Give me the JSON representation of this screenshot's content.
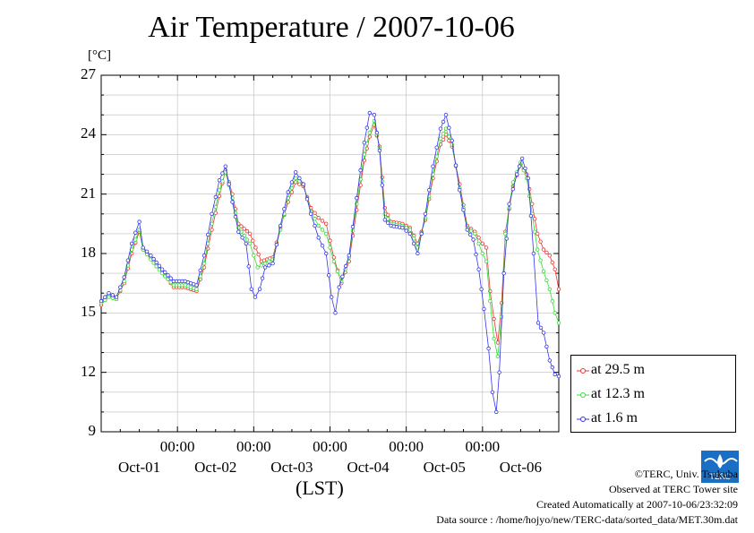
{
  "title": "Air Temperature / 2007-10-06",
  "unit": "[°C]",
  "xlabel": "(LST)",
  "time_label": "00:00",
  "legend": {
    "items": [
      {
        "label": "at 29.5 m",
        "color": "#ee3333"
      },
      {
        "label": "at 12.3 m",
        "color": "#33dd33"
      },
      {
        "label": "at 1.6 m",
        "color": "#3333ee"
      }
    ]
  },
  "credits": {
    "copyright": "©TERC, Univ. Tsukuba",
    "observed": "Observed at TERC Tower site",
    "created": "Created Automatically at 2007-10-06/23:32:09",
    "source": "Data source : /home/hojyo/new/TERC-data/sorted_data/MET.30m.dat"
  },
  "logo_text": "TERC",
  "chart_data": {
    "type": "line",
    "title": "Air Temperature / 2007-10-06",
    "ylabel": "[°C]",
    "xlabel": "(LST)",
    "ylim": [
      9,
      27
    ],
    "yticks": [
      9,
      12,
      15,
      18,
      21,
      24,
      27
    ],
    "xlim_days": [
      0,
      6
    ],
    "date_labels": [
      "Oct-01",
      "Oct-02",
      "Oct-03",
      "Oct-04",
      "Oct-05",
      "Oct-06"
    ],
    "grid": true,
    "legend_position": "bottom-right outside",
    "series": [
      {
        "name": "at 29.5 m",
        "color": "#ee3333",
        "points": [
          [
            0,
            15.4
          ],
          [
            0.1,
            15.9
          ],
          [
            0.2,
            15.7
          ],
          [
            0.3,
            16.5
          ],
          [
            0.4,
            18.0
          ],
          [
            0.5,
            19.1
          ],
          [
            0.55,
            18.2
          ],
          [
            0.65,
            17.8
          ],
          [
            0.8,
            17.1
          ],
          [
            0.95,
            16.3
          ],
          [
            1.1,
            16.3
          ],
          [
            1.25,
            16.1
          ],
          [
            1.35,
            17.3
          ],
          [
            1.45,
            19.2
          ],
          [
            1.55,
            20.9
          ],
          [
            1.63,
            22.2
          ],
          [
            1.72,
            21.0
          ],
          [
            1.8,
            19.5
          ],
          [
            1.95,
            19.0
          ],
          [
            2.1,
            17.6
          ],
          [
            2.25,
            17.8
          ],
          [
            2.35,
            19.3
          ],
          [
            2.45,
            20.6
          ],
          [
            2.55,
            21.6
          ],
          [
            2.65,
            21.4
          ],
          [
            2.75,
            20.3
          ],
          [
            2.85,
            19.8
          ],
          [
            2.95,
            19.5
          ],
          [
            3.05,
            17.8
          ],
          [
            3.15,
            16.5
          ],
          [
            3.25,
            17.6
          ],
          [
            3.35,
            20.2
          ],
          [
            3.45,
            22.7
          ],
          [
            3.52,
            23.9
          ],
          [
            3.58,
            24.5
          ],
          [
            3.65,
            23.4
          ],
          [
            3.72,
            20.3
          ],
          [
            3.8,
            19.6
          ],
          [
            3.95,
            19.5
          ],
          [
            4.05,
            19.3
          ],
          [
            4.15,
            18.5
          ],
          [
            4.25,
            19.7
          ],
          [
            4.35,
            21.8
          ],
          [
            4.45,
            23.5
          ],
          [
            4.52,
            24.0
          ],
          [
            4.6,
            23.4
          ],
          [
            4.7,
            21.5
          ],
          [
            4.8,
            19.4
          ],
          [
            4.9,
            19.1
          ],
          [
            5.0,
            18.5
          ],
          [
            5.05,
            18.3
          ],
          [
            5.1,
            16.1
          ],
          [
            5.15,
            14.7
          ],
          [
            5.2,
            13.5
          ],
          [
            5.25,
            15.5
          ],
          [
            5.3,
            19.1
          ],
          [
            5.4,
            21.4
          ],
          [
            5.5,
            22.5
          ],
          [
            5.58,
            22.0
          ],
          [
            5.65,
            20.5
          ],
          [
            5.72,
            19.0
          ],
          [
            5.8,
            18.2
          ],
          [
            5.88,
            17.9
          ],
          [
            5.95,
            17.2
          ],
          [
            6.0,
            16.2
          ]
        ]
      },
      {
        "name": "at 12.3 m",
        "color": "#33dd33",
        "points": [
          [
            0,
            15.5
          ],
          [
            0.1,
            15.8
          ],
          [
            0.2,
            15.7
          ],
          [
            0.3,
            16.6
          ],
          [
            0.4,
            18.2
          ],
          [
            0.5,
            19.2
          ],
          [
            0.55,
            18.2
          ],
          [
            0.65,
            17.7
          ],
          [
            0.8,
            17.0
          ],
          [
            0.95,
            16.4
          ],
          [
            1.1,
            16.4
          ],
          [
            1.25,
            16.2
          ],
          [
            1.35,
            17.5
          ],
          [
            1.45,
            19.5
          ],
          [
            1.55,
            21.2
          ],
          [
            1.63,
            22.1
          ],
          [
            1.72,
            20.8
          ],
          [
            1.8,
            19.3
          ],
          [
            1.95,
            18.5
          ],
          [
            2.05,
            17.3
          ],
          [
            2.15,
            17.5
          ],
          [
            2.25,
            17.7
          ],
          [
            2.35,
            19.2
          ],
          [
            2.45,
            20.8
          ],
          [
            2.55,
            21.8
          ],
          [
            2.65,
            21.5
          ],
          [
            2.75,
            20.1
          ],
          [
            2.85,
            19.4
          ],
          [
            2.95,
            19.0
          ],
          [
            3.05,
            17.6
          ],
          [
            3.15,
            16.6
          ],
          [
            3.25,
            17.8
          ],
          [
            3.35,
            20.5
          ],
          [
            3.45,
            23.0
          ],
          [
            3.52,
            24.1
          ],
          [
            3.58,
            24.7
          ],
          [
            3.65,
            23.3
          ],
          [
            3.72,
            20.0
          ],
          [
            3.8,
            19.5
          ],
          [
            3.95,
            19.4
          ],
          [
            4.05,
            19.2
          ],
          [
            4.15,
            18.3
          ],
          [
            4.25,
            19.8
          ],
          [
            4.35,
            22.0
          ],
          [
            4.45,
            23.8
          ],
          [
            4.52,
            24.3
          ],
          [
            4.6,
            23.5
          ],
          [
            4.7,
            21.3
          ],
          [
            4.8,
            19.3
          ],
          [
            4.9,
            19.0
          ],
          [
            5.0,
            18.0
          ],
          [
            5.05,
            17.6
          ],
          [
            5.1,
            15.6
          ],
          [
            5.15,
            13.7
          ],
          [
            5.2,
            12.8
          ],
          [
            5.25,
            14.8
          ],
          [
            5.3,
            19.0
          ],
          [
            5.4,
            21.6
          ],
          [
            5.5,
            22.6
          ],
          [
            5.58,
            21.8
          ],
          [
            5.65,
            20.0
          ],
          [
            5.72,
            18.2
          ],
          [
            5.8,
            17.1
          ],
          [
            5.88,
            16.2
          ],
          [
            5.95,
            15.0
          ],
          [
            6.0,
            14.5
          ]
        ]
      },
      {
        "name": "at 1.6 m",
        "color": "#3333ee",
        "points": [
          [
            0,
            15.6
          ],
          [
            0.1,
            16.0
          ],
          [
            0.2,
            15.8
          ],
          [
            0.3,
            16.8
          ],
          [
            0.4,
            18.5
          ],
          [
            0.5,
            19.6
          ],
          [
            0.55,
            18.3
          ],
          [
            0.65,
            17.9
          ],
          [
            0.8,
            17.2
          ],
          [
            0.95,
            16.6
          ],
          [
            1.1,
            16.6
          ],
          [
            1.25,
            16.4
          ],
          [
            1.35,
            17.9
          ],
          [
            1.45,
            20.0
          ],
          [
            1.55,
            21.7
          ],
          [
            1.63,
            22.4
          ],
          [
            1.72,
            20.6
          ],
          [
            1.8,
            19.1
          ],
          [
            1.9,
            18.5
          ],
          [
            1.97,
            16.2
          ],
          [
            2.02,
            15.8
          ],
          [
            2.08,
            16.2
          ],
          [
            2.15,
            17.3
          ],
          [
            2.25,
            17.5
          ],
          [
            2.35,
            19.4
          ],
          [
            2.45,
            21.1
          ],
          [
            2.55,
            22.1
          ],
          [
            2.65,
            21.5
          ],
          [
            2.75,
            20.0
          ],
          [
            2.85,
            18.8
          ],
          [
            2.95,
            18.0
          ],
          [
            3.02,
            15.8
          ],
          [
            3.07,
            15.0
          ],
          [
            3.12,
            16.3
          ],
          [
            3.25,
            17.9
          ],
          [
            3.35,
            20.8
          ],
          [
            3.45,
            23.6
          ],
          [
            3.52,
            25.1
          ],
          [
            3.58,
            25.0
          ],
          [
            3.65,
            23.2
          ],
          [
            3.72,
            19.7
          ],
          [
            3.8,
            19.4
          ],
          [
            3.95,
            19.3
          ],
          [
            4.05,
            19.0
          ],
          [
            4.15,
            18.0
          ],
          [
            4.25,
            20.0
          ],
          [
            4.35,
            22.4
          ],
          [
            4.45,
            24.3
          ],
          [
            4.52,
            25.0
          ],
          [
            4.6,
            23.7
          ],
          [
            4.7,
            21.2
          ],
          [
            4.8,
            19.2
          ],
          [
            4.88,
            18.7
          ],
          [
            4.95,
            17.2
          ],
          [
            5.02,
            15.2
          ],
          [
            5.08,
            13.2
          ],
          [
            5.13,
            11.0
          ],
          [
            5.18,
            10.0
          ],
          [
            5.22,
            12.0
          ],
          [
            5.28,
            17.0
          ],
          [
            5.35,
            20.5
          ],
          [
            5.45,
            22.0
          ],
          [
            5.52,
            22.8
          ],
          [
            5.6,
            21.8
          ],
          [
            5.67,
            18.0
          ],
          [
            5.73,
            14.5
          ],
          [
            5.8,
            14.0
          ],
          [
            5.88,
            12.6
          ],
          [
            5.95,
            11.9
          ],
          [
            6.0,
            11.8
          ]
        ]
      }
    ]
  }
}
